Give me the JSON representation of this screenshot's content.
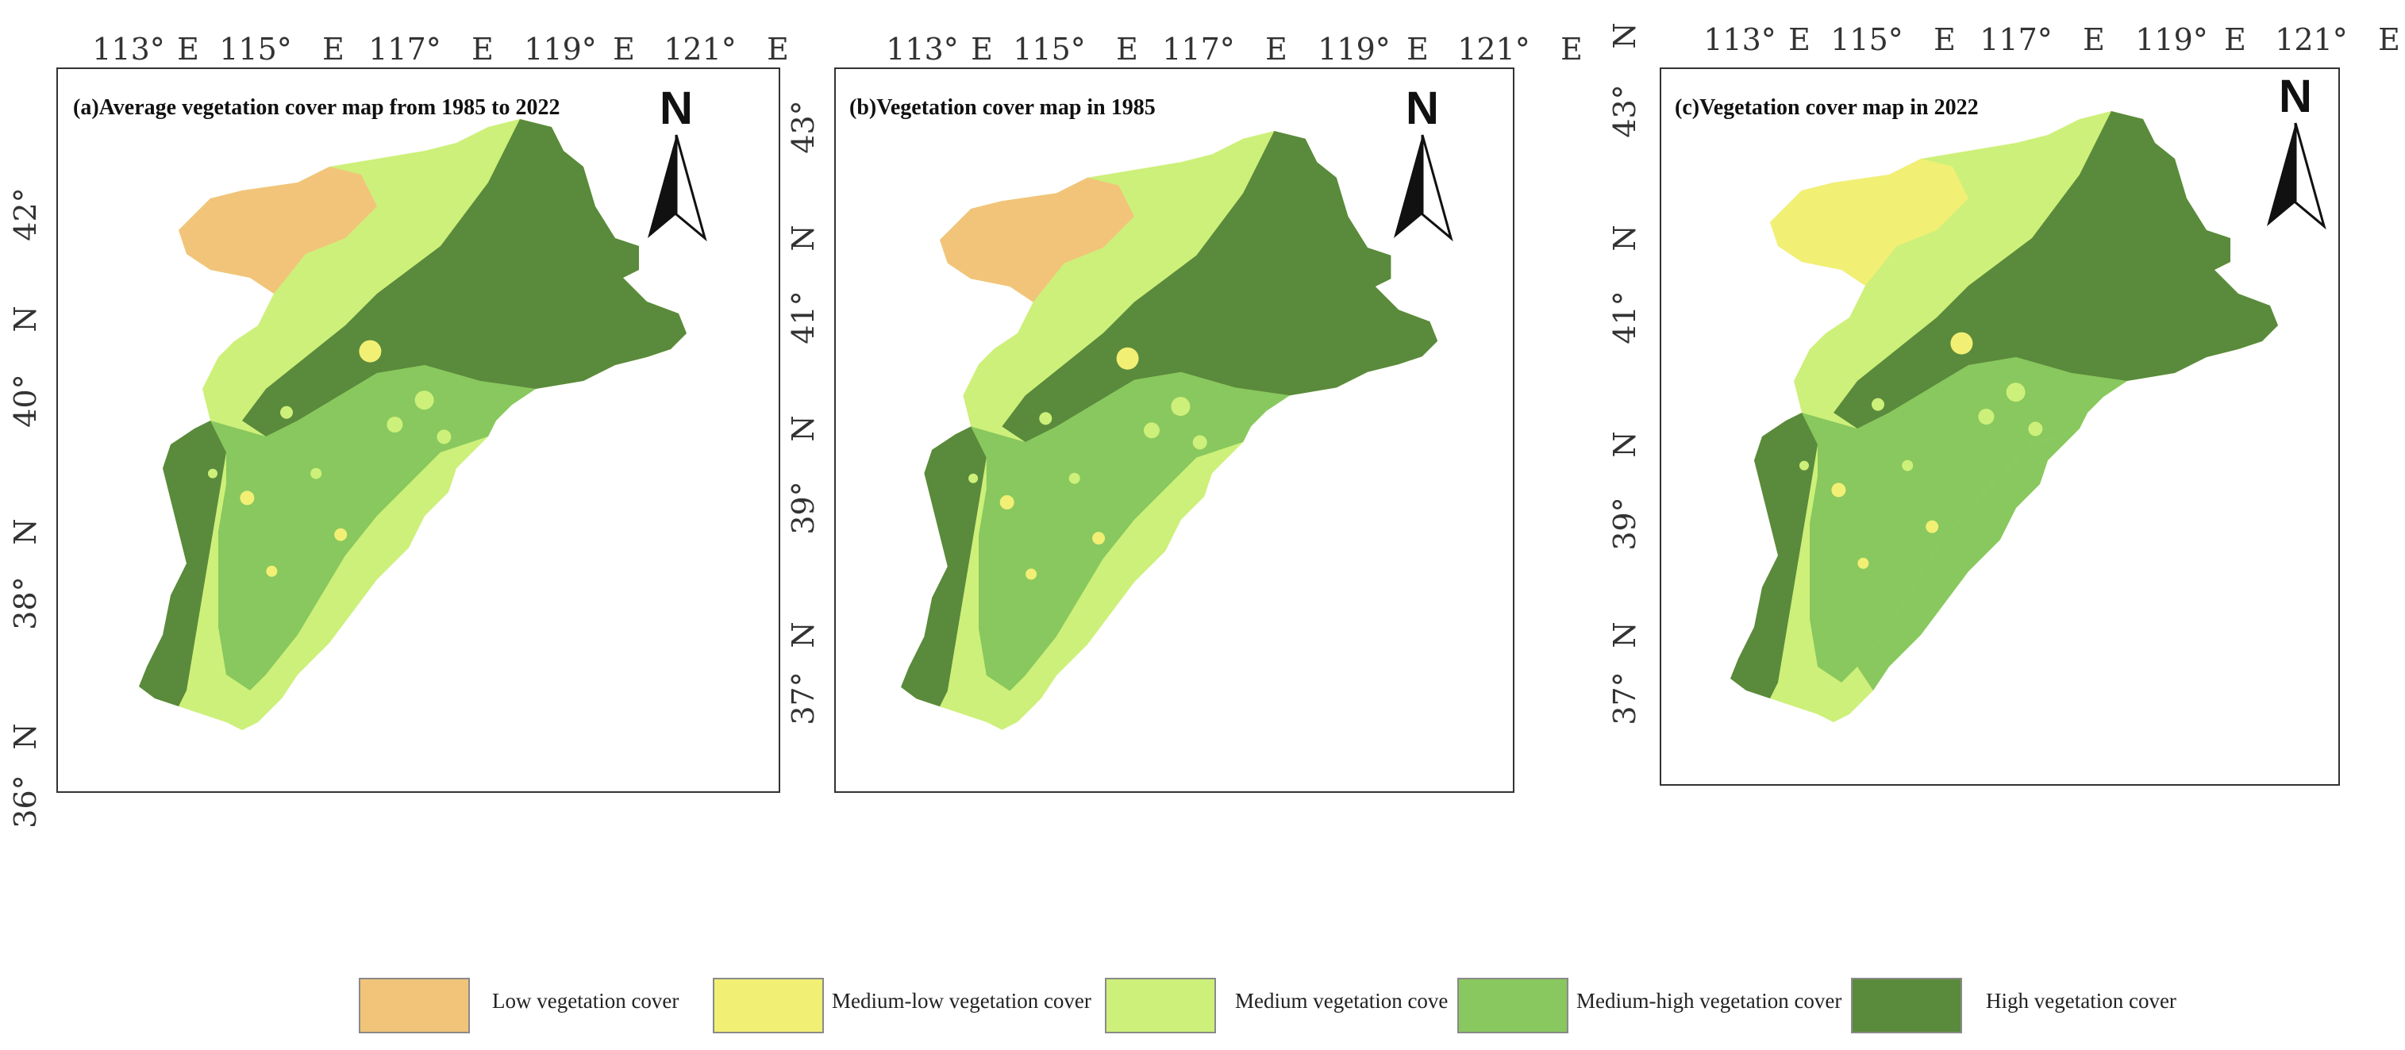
{
  "panels": [
    {
      "title": "(a)Average vegetation cover map from 1985 to 2022",
      "north_label": "N",
      "lon_labels": [
        "113°",
        "E",
        "115°",
        "E",
        "117°",
        "E",
        "119°",
        "E",
        "121°",
        "E"
      ],
      "lat_labels": [
        "42°",
        "N",
        "40°",
        "N",
        "38°",
        "N",
        "36°"
      ]
    },
    {
      "title": "(b)Vegetation cover map in 1985",
      "north_label": "N",
      "lon_labels": [
        "113°",
        "E",
        "115°",
        "E",
        "117°",
        "E",
        "119°",
        "E",
        "121°",
        "E"
      ],
      "lat_labels": [
        "43°",
        "N",
        "41°",
        "N",
        "39°",
        "N",
        "37°"
      ]
    },
    {
      "title": "(c)Vegetation cover map in 2022",
      "north_label": "N",
      "lon_labels": [
        "113°",
        "E",
        "115°",
        "E",
        "117°",
        "E",
        "119°",
        "E",
        "121°",
        "E"
      ],
      "lat_labels": [
        "N",
        "43°",
        "N",
        "41°",
        "N",
        "39°",
        "N",
        "37°"
      ]
    }
  ],
  "legend": [
    {
      "label": "Low vegetation cover",
      "color": "#f2c47a"
    },
    {
      "label": "Medium-low vegetation cover",
      "color": "#f2ef75"
    },
    {
      "label": "Medium vegetation cove",
      "color": "#cdf07a"
    },
    {
      "label": "Medium-high vegetation cover",
      "color": "#88c85e"
    },
    {
      "label": "High vegetation cover",
      "color": "#5a8a3c"
    }
  ],
  "colors": {
    "low": "#f2c47a",
    "medium_low": "#f2ef75",
    "medium": "#cdf07a",
    "medium_high": "#88c85e",
    "high": "#5a8a3c"
  }
}
